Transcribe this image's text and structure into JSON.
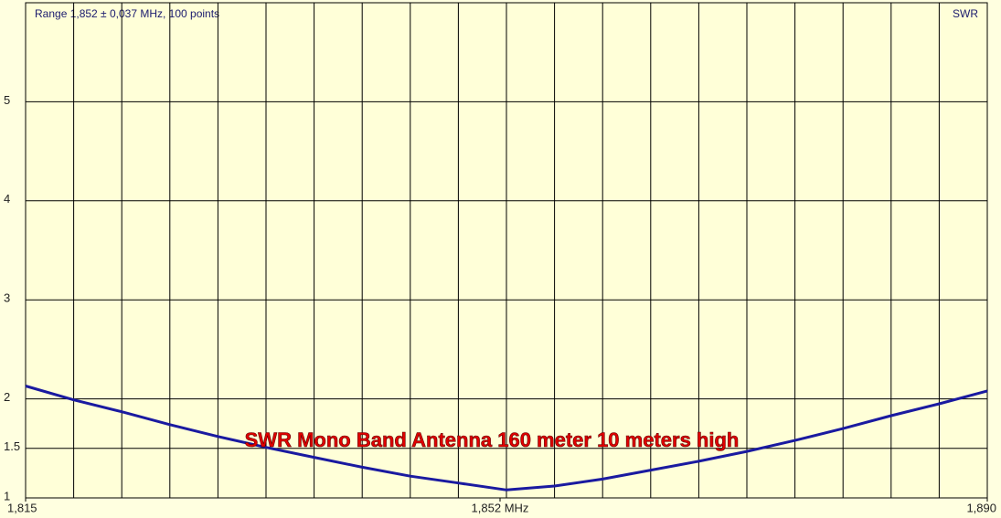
{
  "chart_data": {
    "type": "line",
    "title": "Range  1,852 ± 0,037 MHz, 100 points",
    "y_axis_label": "SWR",
    "annotation": "SWR Mono Band Antenna 160 meter 10 meters high",
    "xlim": [
      1.815,
      1.89
    ],
    "xticks": [
      {
        "value": 1.815,
        "label": "1,815"
      },
      {
        "value": 1.852,
        "label": "1,852 MHz"
      },
      {
        "value": 1.89,
        "label": "1,890"
      }
    ],
    "x_divisions": 20,
    "ylim": [
      1,
      6
    ],
    "yticks": [
      1,
      1.5,
      2,
      3,
      4,
      5
    ],
    "grid": true,
    "x": [
      1.815,
      1.81875,
      1.8225,
      1.82625,
      1.83,
      1.83375,
      1.8375,
      1.84125,
      1.845,
      1.84875,
      1.8525,
      1.85625,
      1.86,
      1.86375,
      1.8675,
      1.87125,
      1.875,
      1.87875,
      1.8825,
      1.88625,
      1.89
    ],
    "series": [
      {
        "name": "SWR",
        "color": "#1a1aa0",
        "values": [
          2.13,
          1.99,
          1.87,
          1.74,
          1.62,
          1.51,
          1.41,
          1.31,
          1.22,
          1.15,
          1.08,
          1.12,
          1.19,
          1.28,
          1.37,
          1.47,
          1.58,
          1.7,
          1.83,
          1.95,
          2.08
        ]
      }
    ]
  }
}
